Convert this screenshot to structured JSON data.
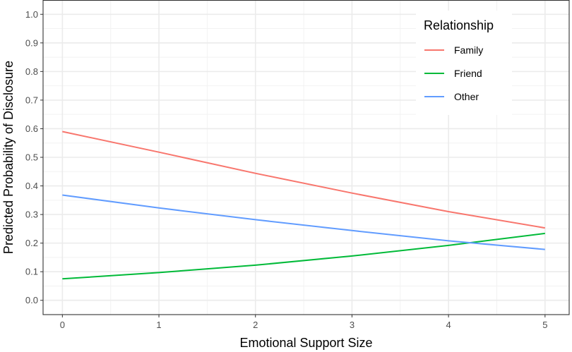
{
  "chart_data": {
    "type": "line",
    "title": "",
    "xlabel": "Emotional Support Size",
    "ylabel": "Predicted Probability of Disclosure",
    "xlim": [
      -0.2,
      5.25
    ],
    "ylim": [
      -0.05,
      1.05
    ],
    "x_ticks": [
      "0",
      "1",
      "2",
      "3",
      "4",
      "5"
    ],
    "y_ticks": [
      "0.0",
      "0.1",
      "0.2",
      "0.3",
      "0.4",
      "0.5",
      "0.6",
      "0.7",
      "0.8",
      "0.9",
      "1.0"
    ],
    "grid": true,
    "legend": {
      "title": "Relationship",
      "position": "top-right"
    },
    "x": [
      0,
      1,
      2,
      3,
      4,
      5
    ],
    "series": [
      {
        "name": "Family",
        "color": "#F8766D",
        "values": [
          0.59,
          0.518,
          0.444,
          0.375,
          0.31,
          0.253
        ]
      },
      {
        "name": "Friend",
        "color": "#00BA38",
        "values": [
          0.075,
          0.097,
          0.123,
          0.155,
          0.192,
          0.234
        ]
      },
      {
        "name": "Other",
        "color": "#619CFF",
        "values": [
          0.368,
          0.323,
          0.282,
          0.244,
          0.208,
          0.178
        ]
      }
    ]
  }
}
